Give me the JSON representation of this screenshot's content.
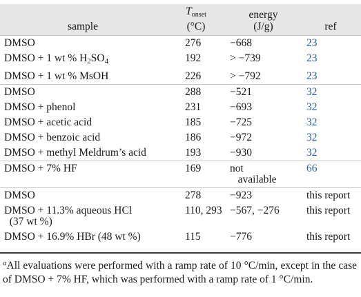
{
  "headers": {
    "sample": "sample",
    "tonset_symbol": "T",
    "tonset_subscript": "onset",
    "tonset_unit": "(°C)",
    "energy_line1": "energy",
    "energy_unit": "(J/g)",
    "ref": "ref"
  },
  "rows": [
    {
      "sample": "DMSO",
      "tonset": "276",
      "energy": "−668",
      "ref": "23"
    },
    {
      "sample_prefix": "DMSO + 1 wt % H",
      "sample_sub1": "2",
      "sample_mid": "SO",
      "sample_sub2": "4",
      "tonset": "192",
      "energy": "> −739",
      "ref": "23"
    },
    {
      "sample": "DMSO + 1 wt % MsOH",
      "tonset": "226",
      "energy": "> −792",
      "ref": "23"
    },
    {
      "sample": "DMSO",
      "tonset": "288",
      "energy": "−521",
      "ref": "32"
    },
    {
      "sample": "DMSO + phenol",
      "tonset": "231",
      "energy": "−693",
      "ref": "32"
    },
    {
      "sample": "DMSO + acetic acid",
      "tonset": "185",
      "energy": "−725",
      "ref": "32"
    },
    {
      "sample": "DMSO + benzoic acid",
      "tonset": "186",
      "energy": "−972",
      "ref": "32"
    },
    {
      "sample": "DMSO + methyl Meldrum’s acid",
      "tonset": "193",
      "energy": "−930",
      "ref": "32"
    },
    {
      "sample": "DMSO + 7% HF",
      "tonset": "169",
      "energy_line1": "not",
      "energy_line2": "available",
      "ref": "66"
    },
    {
      "sample": "DMSO",
      "tonset": "278",
      "energy": "−923",
      "ref": "this report"
    },
    {
      "sample_line1": "DMSO + 11.3% aqueous HCl",
      "sample_line2": "(37 wt %)",
      "tonset": "110, 293",
      "energy": "−567, −276",
      "ref": "this report"
    },
    {
      "sample": "DMSO + 16.9% HBr (48 wt %)",
      "tonset": "115",
      "energy": "−776",
      "ref": "this report"
    }
  ],
  "footnote": {
    "marker": "a",
    "text": "All evaluations were performed with a ramp rate of 10 °C/min, except in the case of DMSO + 7% HF, which was performed with a ramp rate of 1 °C/min."
  },
  "colors": {
    "header_bg": "#e6e6e6",
    "ref_link": "#2a5ea8",
    "text": "#1a1a1a"
  }
}
